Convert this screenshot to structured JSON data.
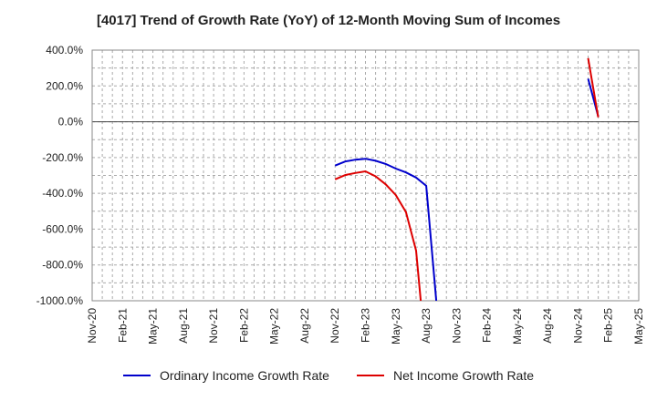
{
  "chart_data": {
    "type": "line",
    "title": "[4017]  Trend of Growth Rate (YoY) of 12-Month Moving Sum of Incomes",
    "xlabel": "",
    "ylabel": "",
    "ylim": [
      -1000,
      400
    ],
    "y_ticks": [
      "400.0%",
      "200.0%",
      "0.0%",
      "-200.0%",
      "-400.0%",
      "-600.0%",
      "-800.0%",
      "-1000.0%"
    ],
    "x_ticks": [
      "Nov-20",
      "Feb-21",
      "May-21",
      "Aug-21",
      "Nov-21",
      "Feb-22",
      "May-22",
      "Aug-22",
      "Nov-22",
      "Feb-23",
      "May-23",
      "Aug-23",
      "Nov-23",
      "Feb-24",
      "May-24",
      "Aug-24",
      "Nov-24",
      "Feb-25",
      "May-25"
    ],
    "grid": true,
    "legend_position": "bottom",
    "series": [
      {
        "name": "Ordinary Income Growth Rate",
        "color": "#0000cc",
        "segments": [
          [
            [
              "2022-11",
              -245
            ],
            [
              "2022-12",
              -222
            ],
            [
              "2023-01",
              -212
            ],
            [
              "2023-02",
              -207
            ],
            [
              "2023-03",
              -218
            ],
            [
              "2023-04",
              -236
            ],
            [
              "2023-05",
              -262
            ],
            [
              "2023-06",
              -283
            ],
            [
              "2023-07",
              -312
            ],
            [
              "2023-08",
              -358
            ],
            [
              "2023-09",
              -1000
            ]
          ],
          [
            [
              "2024-12",
              240
            ],
            [
              "2025-01",
              30
            ]
          ]
        ]
      },
      {
        "name": "Net Income Growth Rate",
        "color": "#dd0000",
        "segments": [
          [
            [
              "2022-11",
              -322
            ],
            [
              "2022-12",
              -298
            ],
            [
              "2023-01",
              -286
            ],
            [
              "2023-02",
              -277
            ],
            [
              "2023-03",
              -305
            ],
            [
              "2023-04",
              -350
            ],
            [
              "2023-05",
              -410
            ],
            [
              "2023-06",
              -505
            ],
            [
              "2023-07",
              -720
            ],
            [
              "2023-07-15",
              -1000
            ]
          ],
          [
            [
              "2024-12",
              355
            ],
            [
              "2025-01",
              25
            ]
          ]
        ]
      }
    ]
  }
}
